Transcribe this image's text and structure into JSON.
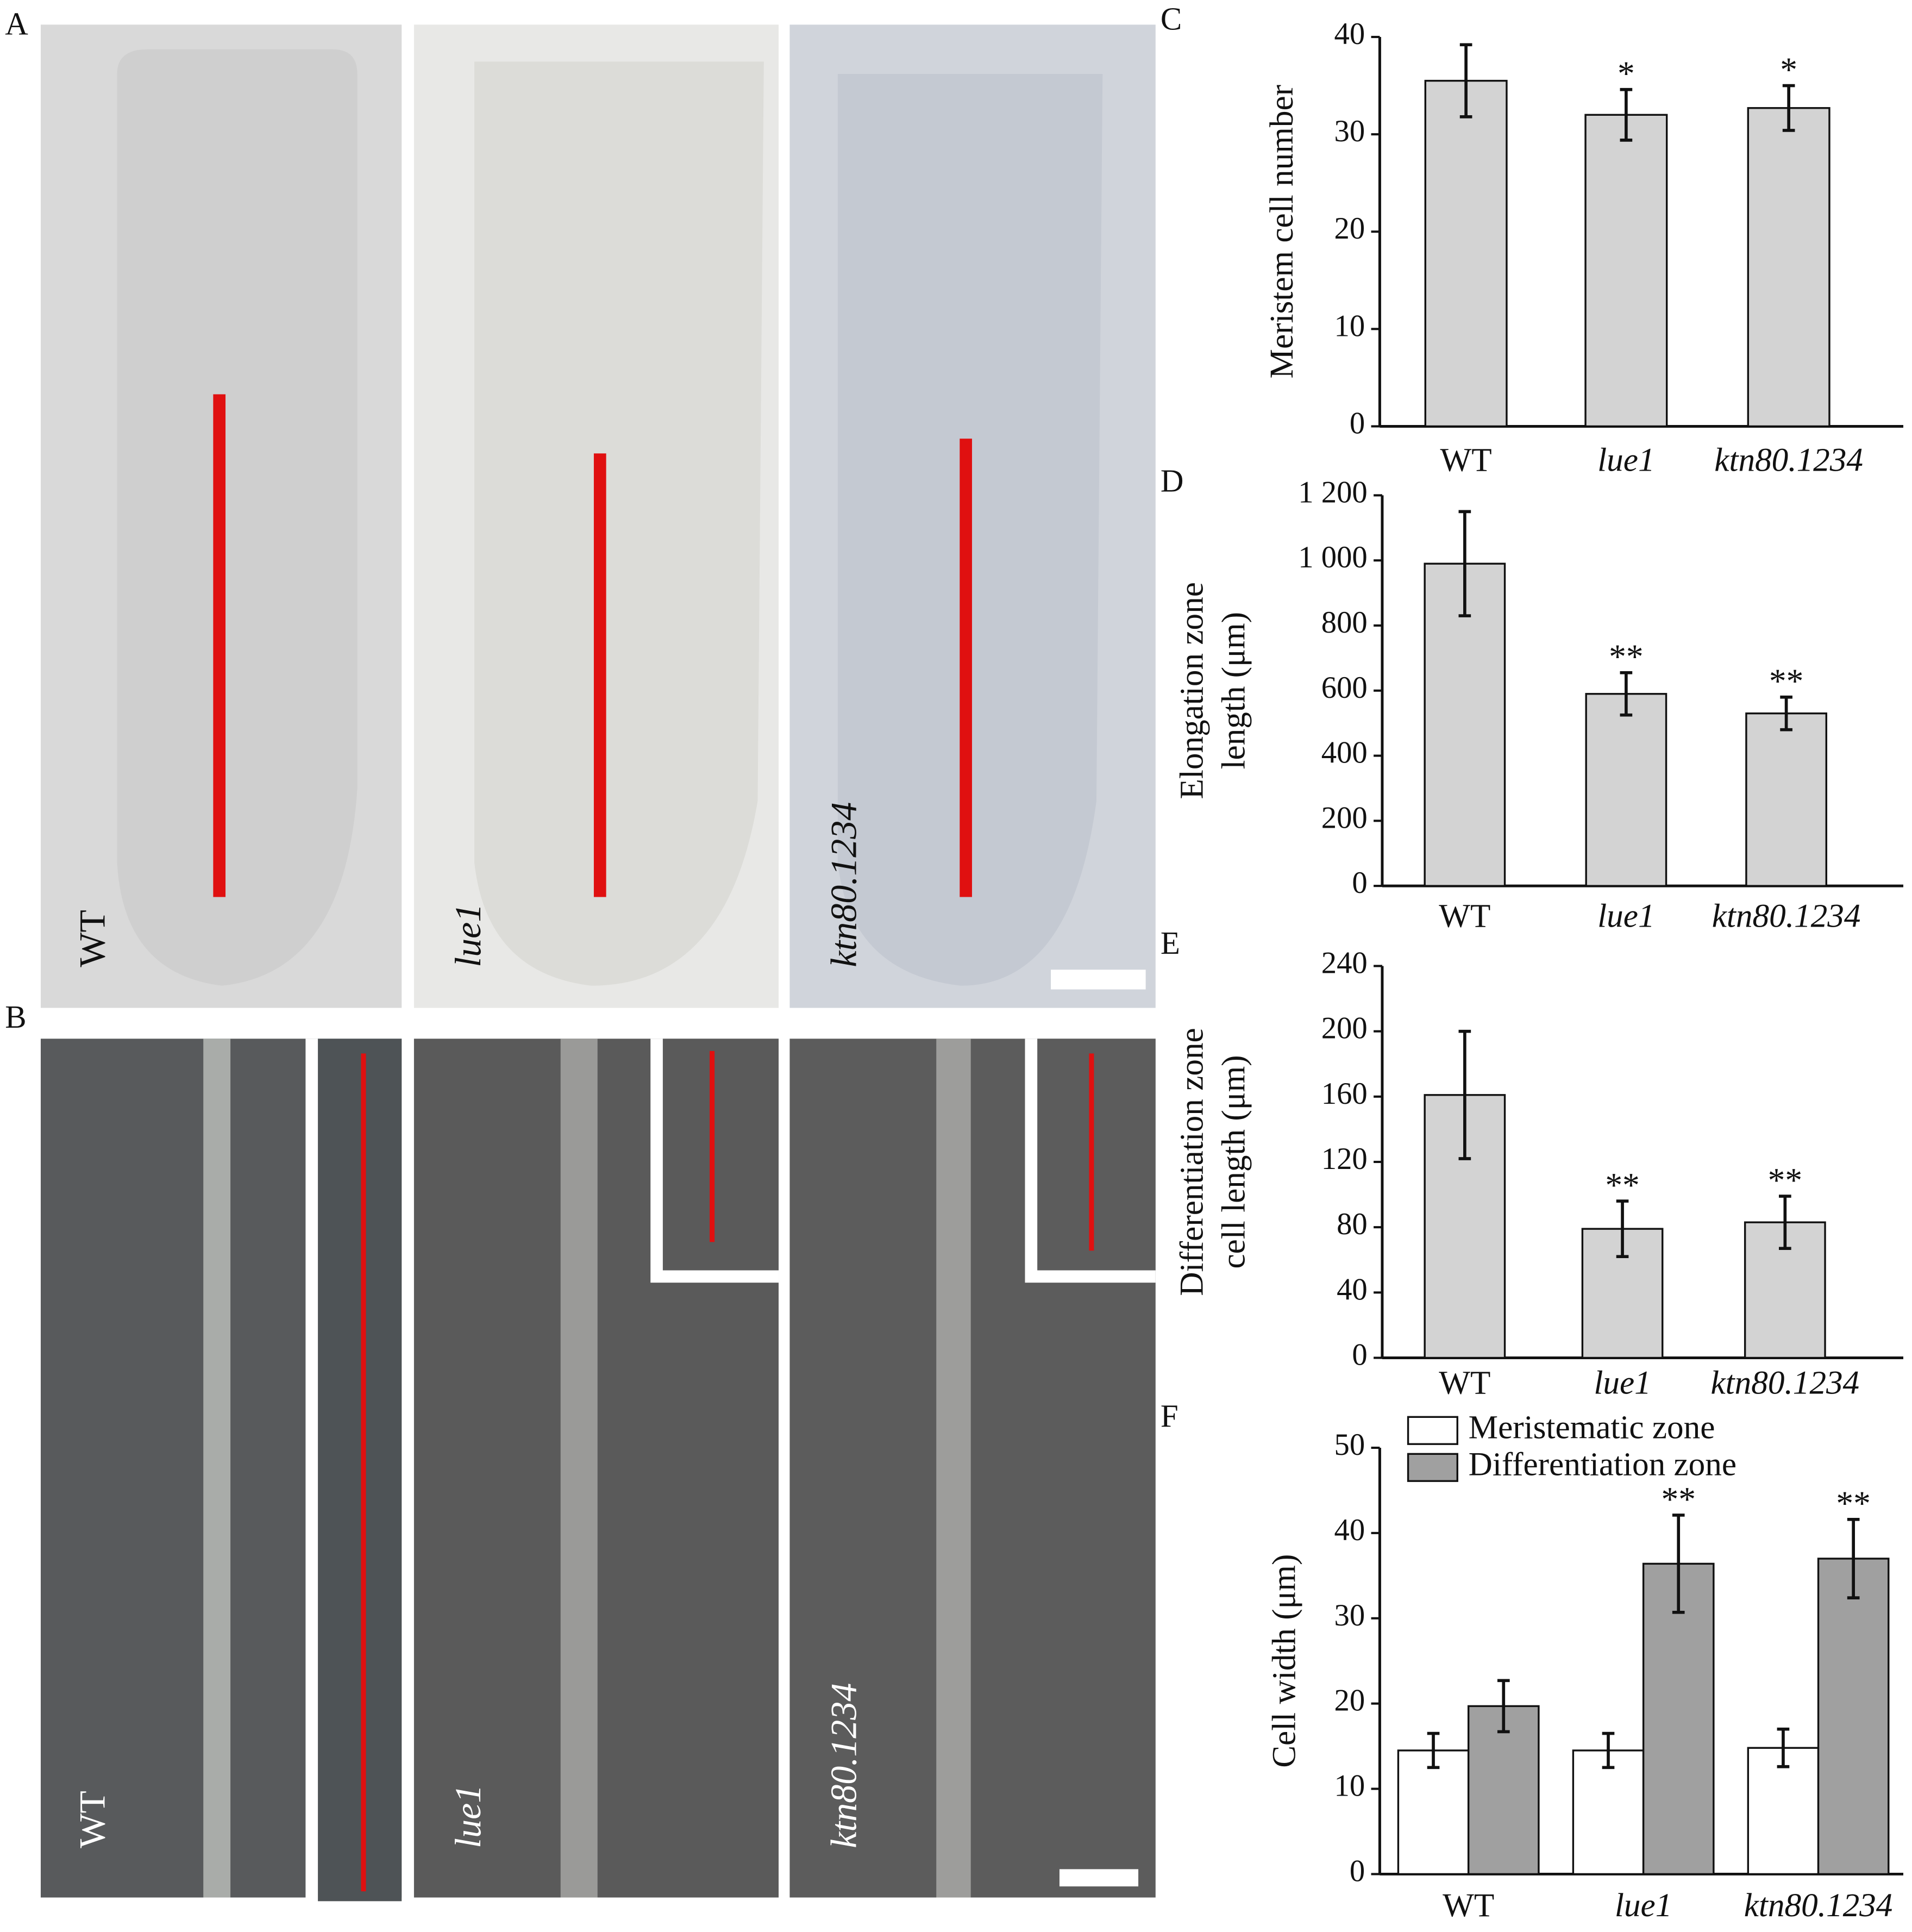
{
  "panels": {
    "letters": [
      "A",
      "B",
      "C",
      "D",
      "E",
      "F"
    ],
    "A": [
      "WT",
      "lue1",
      "ktn80.1234"
    ],
    "B": [
      "WT",
      "lue1",
      "ktn80.1234"
    ]
  },
  "chart_data": [
    {
      "type": "bar",
      "ylabel": [
        "Meristem cell number"
      ],
      "categories": [
        "WT",
        "lue1",
        "ktn80.1234"
      ],
      "values": [
        35.5,
        32,
        32.7
      ],
      "errors": [
        3.7,
        2.6,
        2.3
      ],
      "significance": [
        null,
        "*",
        "*"
      ],
      "color": "#d3d3d3",
      "ylim": [
        0,
        40
      ],
      "yticks": [
        0,
        10,
        20,
        30,
        40
      ]
    },
    {
      "type": "bar",
      "ylabel": [
        "Elongation zone",
        "length (μm)"
      ],
      "categories": [
        "WT",
        "lue1",
        "ktn80.1234"
      ],
      "values": [
        990,
        590,
        530
      ],
      "errors": [
        160,
        65,
        50
      ],
      "significance": [
        null,
        "**",
        "**"
      ],
      "color": "#d3d3d3",
      "ylim": [
        0,
        1200
      ],
      "yticks": [
        0,
        200,
        400,
        600,
        800,
        {
          "value": 1000,
          "label": "1 000"
        },
        {
          "value": 1200,
          "label": "1 200"
        }
      ]
    },
    {
      "type": "bar",
      "ylabel": [
        "Differentiation zone",
        "cell length (μm)"
      ],
      "categories": [
        "WT",
        "lue1",
        "ktn80.1234"
      ],
      "values": [
        161,
        79,
        83
      ],
      "errors": [
        39,
        17,
        16
      ],
      "significance": [
        null,
        "**",
        "**"
      ],
      "color": "#d3d3d3",
      "ylim": [
        0,
        240
      ],
      "yticks": [
        0,
        40,
        80,
        120,
        160,
        200,
        240
      ]
    },
    {
      "type": "bar",
      "ylabel": [
        "Cell width (μm)"
      ],
      "categories": [
        "WT",
        "lue1",
        "ktn80.1234"
      ],
      "series": [
        {
          "name": "Meristematic zone",
          "color": "#ffffff",
          "values": [
            14.5,
            14.5,
            14.8
          ],
          "errors": [
            2,
            2,
            2.2
          ]
        },
        {
          "name": "Differentiation zone",
          "color": "#a0a0a0",
          "values": [
            19.7,
            36.4,
            37
          ],
          "errors": [
            3,
            5.7,
            4.6
          ],
          "significance": [
            null,
            "**",
            "**"
          ]
        }
      ],
      "legend": "upper left",
      "ylim": [
        0,
        50
      ],
      "yticks": [
        0,
        10,
        20,
        30,
        40,
        50
      ]
    }
  ]
}
